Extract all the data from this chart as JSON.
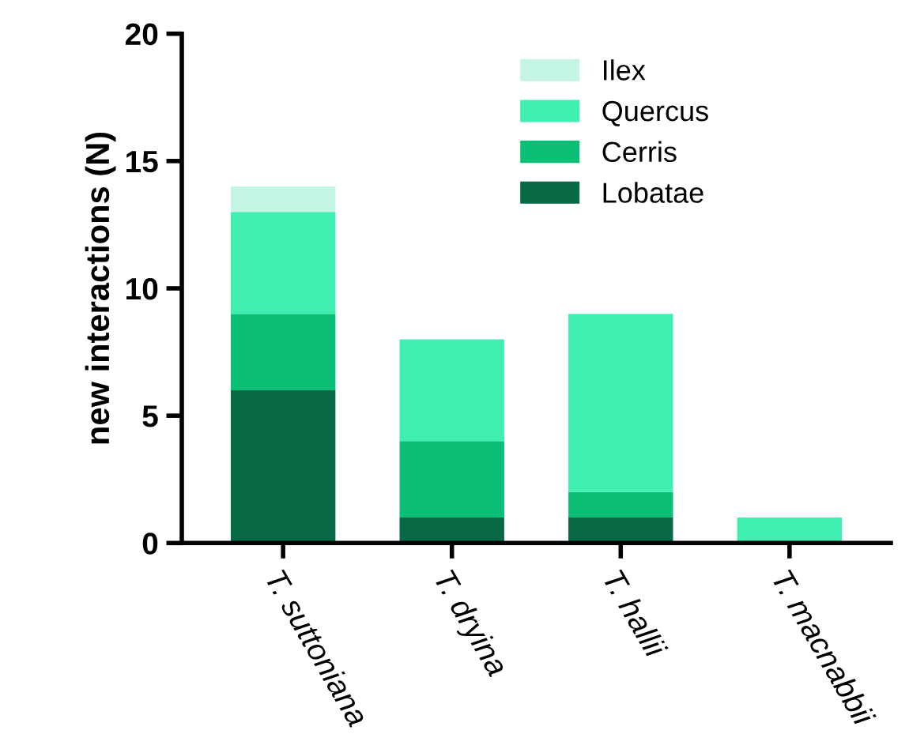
{
  "chart_data": {
    "type": "bar",
    "stacked": true,
    "ylabel": "new interactions (N)",
    "categories": [
      "T. suttoniana",
      "T. dryina",
      "T. hallii",
      "T. macnabbii"
    ],
    "series": [
      {
        "name": "Lobatae",
        "color": "#086a45",
        "values": [
          6,
          1,
          1,
          0
        ]
      },
      {
        "name": "Cerris",
        "color": "#0cbf76",
        "values": [
          3,
          3,
          1,
          0
        ]
      },
      {
        "name": "Quercus",
        "color": "#40eeb0",
        "values": [
          4,
          4,
          7,
          1
        ]
      },
      {
        "name": "Ilex",
        "color": "#c4f5e3",
        "values": [
          1,
          0,
          0,
          0
        ]
      }
    ],
    "ylim": [
      0,
      20
    ],
    "yticks": [
      0,
      5,
      10,
      15,
      20
    ],
    "grid": false,
    "legend": "top right"
  }
}
